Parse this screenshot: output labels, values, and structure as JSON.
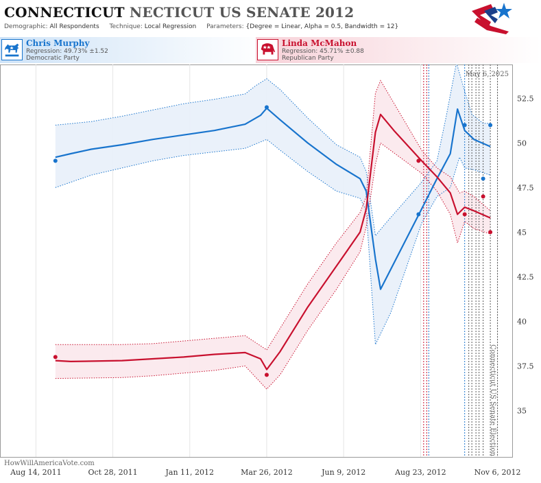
{
  "header": {
    "title_state": "CONNECTICUT",
    "title_race": "NECTICUT US SENATE 2012",
    "demographic_label": "Demographic:",
    "demographic_value": "All Respondents",
    "technique_label": "Technique:",
    "technique_value": "Local Regression",
    "parameters_label": "Parameters:",
    "parameters_value": "{Degree = Linear, Alpha = 0.5, Bandwidth = 12}"
  },
  "candidates": [
    {
      "name": "Chris Murphy",
      "regression": "Regression: 49.73% ±1.52",
      "party": "Democratic Party",
      "color": "#1874cd",
      "icon": "donkey-icon"
    },
    {
      "name": "Linda McMahon",
      "regression": "Regression: 45.71% ±0.88",
      "party": "Republican Party",
      "color": "#c8102e",
      "icon": "elephant-icon"
    }
  ],
  "date_label": "May 6, 2025",
  "election_label": "Connecticut US Senate Election",
  "watermark": "HowWillAmericaVote.com",
  "chart_data": {
    "type": "line",
    "x_axis_labels": [
      "Aug 14, 2011",
      "Oct 28, 2011",
      "Jan 11, 2012",
      "Mar 26, 2012",
      "Jun 9, 2012",
      "Aug 23, 2012",
      "Nov 6, 2012"
    ],
    "x_axis_label_dates": [
      "2011-08-14",
      "2011-10-28",
      "2012-01-11",
      "2012-03-26",
      "2012-06-09",
      "2012-08-23",
      "2012-11-06"
    ],
    "xlim": [
      "2011-07-10",
      "2012-11-21"
    ],
    "y_ticks": [
      35,
      37.5,
      40,
      42.5,
      45,
      47.5,
      50,
      52.5
    ],
    "ylim": [
      32.4,
      54.4
    ],
    "grid": "vertical",
    "series": [
      {
        "name": "Chris Murphy",
        "color": "#1874cd",
        "fill": "#e8f0fa",
        "trend": [
          [
            "2011-09-02",
            49.2
          ],
          [
            "2011-09-17",
            49.4
          ],
          [
            "2011-10-07",
            49.65
          ],
          [
            "2011-11-06",
            49.9
          ],
          [
            "2011-12-06",
            50.2
          ],
          [
            "2012-01-05",
            50.45
          ],
          [
            "2012-02-04",
            50.7
          ],
          [
            "2012-03-05",
            51.05
          ],
          [
            "2012-03-20",
            51.55
          ],
          [
            "2012-03-26",
            51.95
          ],
          [
            "2012-04-08",
            51.3
          ],
          [
            "2012-05-05",
            50.0
          ],
          [
            "2012-06-02",
            48.8
          ],
          [
            "2012-06-25",
            48.0
          ],
          [
            "2012-07-01",
            47.3
          ],
          [
            "2012-07-10",
            43.5
          ],
          [
            "2012-07-15",
            41.8
          ],
          [
            "2012-08-24",
            46.3
          ],
          [
            "2012-09-08",
            48.0
          ],
          [
            "2012-09-21",
            49.4
          ],
          [
            "2012-09-28",
            51.9
          ],
          [
            "2012-10-05",
            50.7
          ],
          [
            "2012-10-14",
            50.2
          ],
          [
            "2012-10-30",
            49.8
          ]
        ],
        "upper": [
          [
            "2011-09-02",
            51.0
          ],
          [
            "2011-10-07",
            51.2
          ],
          [
            "2011-11-06",
            51.5
          ],
          [
            "2011-12-06",
            51.85
          ],
          [
            "2012-01-05",
            52.2
          ],
          [
            "2012-02-04",
            52.45
          ],
          [
            "2012-03-05",
            52.75
          ],
          [
            "2012-03-15",
            53.2
          ],
          [
            "2012-03-26",
            53.6
          ],
          [
            "2012-04-08",
            53.0
          ],
          [
            "2012-05-05",
            51.4
          ],
          [
            "2012-06-02",
            49.9
          ],
          [
            "2012-06-25",
            49.2
          ],
          [
            "2012-07-01",
            48.4
          ],
          [
            "2012-07-10",
            44.8
          ],
          [
            "2012-07-20",
            45.5
          ],
          [
            "2012-08-24",
            47.8
          ],
          [
            "2012-09-08",
            49.0
          ],
          [
            "2012-09-17",
            51.5
          ],
          [
            "2012-09-27",
            54.5
          ],
          [
            "2012-10-04",
            53.1
          ],
          [
            "2012-10-12",
            51.6
          ],
          [
            "2012-10-23",
            51.1
          ],
          [
            "2012-10-30",
            51.1
          ]
        ],
        "lower": [
          [
            "2011-09-02",
            47.5
          ],
          [
            "2011-10-07",
            48.2
          ],
          [
            "2011-11-06",
            48.6
          ],
          [
            "2011-12-06",
            49.0
          ],
          [
            "2012-01-05",
            49.3
          ],
          [
            "2012-02-04",
            49.5
          ],
          [
            "2012-03-05",
            49.7
          ],
          [
            "2012-03-26",
            50.2
          ],
          [
            "2012-04-08",
            49.6
          ],
          [
            "2012-05-05",
            48.4
          ],
          [
            "2012-06-02",
            47.3
          ],
          [
            "2012-06-25",
            46.9
          ],
          [
            "2012-07-01",
            46.2
          ],
          [
            "2012-07-10",
            38.7
          ],
          [
            "2012-07-25",
            40.5
          ],
          [
            "2012-08-24",
            45.5
          ],
          [
            "2012-09-08",
            47.0
          ],
          [
            "2012-09-21",
            47.5
          ],
          [
            "2012-09-30",
            49.2
          ],
          [
            "2012-10-05",
            48.6
          ],
          [
            "2012-10-14",
            48.5
          ],
          [
            "2012-10-30",
            48.2
          ]
        ],
        "polls": [
          [
            "2011-09-02",
            49.0
          ],
          [
            "2012-03-26",
            52.0
          ],
          [
            "2012-08-21",
            46.0
          ],
          [
            "2012-10-05",
            51.0
          ],
          [
            "2012-10-23",
            48.0
          ],
          [
            "2012-10-30",
            51.0
          ]
        ]
      },
      {
        "name": "Linda McMahon",
        "color": "#c8102e",
        "fill": "#fbe8ec",
        "trend": [
          [
            "2011-09-02",
            37.8
          ],
          [
            "2011-09-17",
            37.75
          ],
          [
            "2011-11-06",
            37.8
          ],
          [
            "2011-12-06",
            37.9
          ],
          [
            "2012-01-05",
            38.0
          ],
          [
            "2012-02-04",
            38.15
          ],
          [
            "2012-03-05",
            38.25
          ],
          [
            "2012-03-20",
            37.9
          ],
          [
            "2012-03-26",
            37.3
          ],
          [
            "2012-04-08",
            38.3
          ],
          [
            "2012-05-05",
            40.8
          ],
          [
            "2012-06-02",
            43.1
          ],
          [
            "2012-06-25",
            45.0
          ],
          [
            "2012-07-01",
            46.3
          ],
          [
            "2012-07-10",
            50.6
          ],
          [
            "2012-07-15",
            51.6
          ],
          [
            "2012-07-28",
            50.7
          ],
          [
            "2012-08-24",
            49.0
          ],
          [
            "2012-09-08",
            48.1
          ],
          [
            "2012-09-21",
            47.2
          ],
          [
            "2012-09-28",
            46.0
          ],
          [
            "2012-10-05",
            46.4
          ],
          [
            "2012-10-14",
            46.2
          ],
          [
            "2012-10-30",
            45.8
          ]
        ],
        "upper": [
          [
            "2011-09-02",
            38.7
          ],
          [
            "2011-11-06",
            38.7
          ],
          [
            "2011-12-06",
            38.75
          ],
          [
            "2012-01-05",
            38.9
          ],
          [
            "2012-02-04",
            39.05
          ],
          [
            "2012-03-05",
            39.2
          ],
          [
            "2012-03-26",
            38.4
          ],
          [
            "2012-04-08",
            39.6
          ],
          [
            "2012-05-05",
            42.1
          ],
          [
            "2012-06-02",
            44.4
          ],
          [
            "2012-06-25",
            46.1
          ],
          [
            "2012-07-01",
            47.0
          ],
          [
            "2012-07-10",
            52.8
          ],
          [
            "2012-07-15",
            53.5
          ],
          [
            "2012-08-24",
            49.6
          ],
          [
            "2012-09-08",
            48.6
          ],
          [
            "2012-09-21",
            48.1
          ],
          [
            "2012-09-30",
            47.2
          ],
          [
            "2012-10-05",
            47.3
          ],
          [
            "2012-10-14",
            47.0
          ],
          [
            "2012-10-30",
            46.2
          ]
        ],
        "lower": [
          [
            "2011-09-02",
            36.8
          ],
          [
            "2011-11-06",
            36.85
          ],
          [
            "2011-12-06",
            36.95
          ],
          [
            "2012-01-05",
            37.1
          ],
          [
            "2012-02-04",
            37.25
          ],
          [
            "2012-03-05",
            37.5
          ],
          [
            "2012-03-26",
            36.2
          ],
          [
            "2012-04-08",
            37.0
          ],
          [
            "2012-05-05",
            39.5
          ],
          [
            "2012-06-02",
            41.8
          ],
          [
            "2012-06-25",
            43.9
          ],
          [
            "2012-07-01",
            45.3
          ],
          [
            "2012-07-10",
            48.8
          ],
          [
            "2012-07-15",
            50.0
          ],
          [
            "2012-08-24",
            48.3
          ],
          [
            "2012-09-08",
            47.3
          ],
          [
            "2012-09-21",
            46.0
          ],
          [
            "2012-09-28",
            44.4
          ],
          [
            "2012-10-05",
            45.6
          ],
          [
            "2012-10-14",
            45.2
          ],
          [
            "2012-10-30",
            44.9
          ]
        ],
        "polls": [
          [
            "2011-09-02",
            38.0
          ],
          [
            "2012-03-26",
            37.0
          ],
          [
            "2012-08-21",
            49.0
          ],
          [
            "2012-10-05",
            46.0
          ],
          [
            "2012-10-23",
            47.0
          ],
          [
            "2012-10-30",
            45.0
          ]
        ]
      }
    ],
    "poll_date_lines": [
      {
        "date": "2012-08-26",
        "color": "#c8102e"
      },
      {
        "date": "2012-08-29",
        "color": "#c8102e"
      },
      {
        "date": "2012-08-31",
        "color": "#1874cd"
      },
      {
        "date": "2012-10-05",
        "color": "#1874cd"
      },
      {
        "date": "2012-10-09",
        "color": "#555555"
      },
      {
        "date": "2012-10-12",
        "color": "#555555"
      },
      {
        "date": "2012-10-16",
        "color": "#555555"
      },
      {
        "date": "2012-10-19",
        "color": "#555555"
      },
      {
        "date": "2012-10-23",
        "color": "#555555"
      },
      {
        "date": "2012-10-30",
        "color": "#555555"
      }
    ],
    "election_line": {
      "date": "2012-11-06",
      "color": "#555555"
    }
  }
}
